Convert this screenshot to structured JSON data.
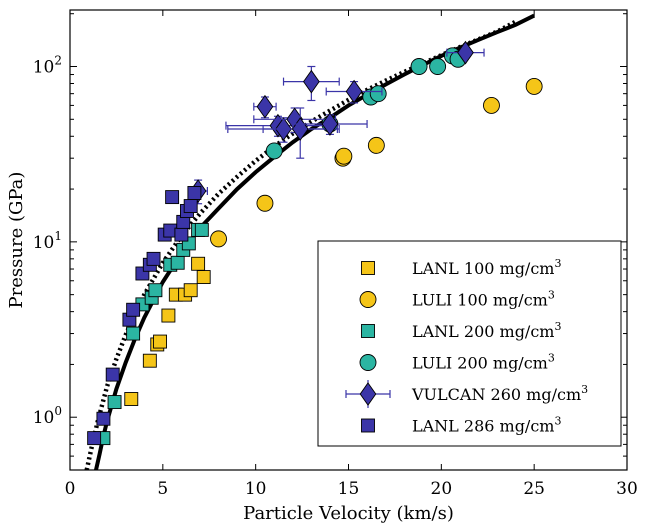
{
  "chart_data": {
    "type": "scatter",
    "xlabel": "Particle Velocity (km/s)",
    "ylabel": "Pressure (GPa)",
    "xlim": [
      0,
      30
    ],
    "ylim": [
      0.5,
      210
    ],
    "yscale": "log",
    "x_ticks": [
      0,
      5,
      10,
      15,
      20,
      25,
      30
    ],
    "y_ticks": [
      {
        "value": 1,
        "base": "10",
        "exp": "0"
      },
      {
        "value": 10,
        "base": "10",
        "exp": "1"
      },
      {
        "value": 100,
        "base": "10",
        "exp": "2"
      }
    ],
    "grid": false,
    "legend_position": "bottom-right",
    "fit_curves": [
      {
        "style": "solid",
        "color": "#000000",
        "points": [
          [
            1.4,
            0.5
          ],
          [
            1.6,
            0.62
          ],
          [
            1.8,
            0.78
          ],
          [
            2,
            0.95
          ],
          [
            2.5,
            1.45
          ],
          [
            3,
            2.05
          ],
          [
            3.5,
            2.8
          ],
          [
            4,
            3.7
          ],
          [
            5,
            5.9
          ],
          [
            6,
            8.6
          ],
          [
            7,
            12
          ],
          [
            8,
            15.5
          ],
          [
            9,
            20
          ],
          [
            10,
            25
          ],
          [
            11,
            30.5
          ],
          [
            12,
            37
          ],
          [
            13,
            44
          ],
          [
            14,
            51
          ],
          [
            15,
            60
          ],
          [
            16,
            69
          ],
          [
            17,
            79
          ],
          [
            18,
            90
          ],
          [
            19,
            102
          ],
          [
            20,
            115
          ],
          [
            21,
            128
          ],
          [
            22,
            142
          ],
          [
            23,
            157
          ],
          [
            24,
            173
          ],
          [
            25,
            195
          ]
        ]
      },
      {
        "style": "dotted",
        "color": "#000000",
        "points": [
          [
            0.9,
            0.5
          ],
          [
            1.2,
            0.7
          ],
          [
            1.5,
            0.95
          ],
          [
            2,
            1.5
          ],
          [
            2.5,
            2.15
          ],
          [
            3,
            2.95
          ],
          [
            3.5,
            3.9
          ],
          [
            4,
            5
          ],
          [
            5,
            7.6
          ],
          [
            6,
            10.8
          ],
          [
            7,
            14.5
          ],
          [
            8,
            18.8
          ],
          [
            9,
            23.5
          ],
          [
            10,
            29
          ],
          [
            11,
            35
          ],
          [
            12,
            41.5
          ],
          [
            13,
            48.5
          ],
          [
            14,
            56
          ],
          [
            15,
            64.5
          ],
          [
            16,
            73.5
          ],
          [
            17,
            83
          ],
          [
            18,
            93
          ],
          [
            19,
            104
          ],
          [
            20,
            116
          ],
          [
            21,
            129
          ],
          [
            22,
            143
          ],
          [
            23,
            158
          ],
          [
            24,
            180
          ]
        ]
      }
    ],
    "series": [
      {
        "name": "LANL 100 mg/cm3",
        "label_base": "LANL 100 mg/cm",
        "label_sup": "3",
        "marker": "square",
        "color": "#f5c518",
        "points": [
          [
            3.3,
            1.27
          ],
          [
            4.3,
            2.1
          ],
          [
            4.7,
            2.6
          ],
          [
            4.85,
            2.7
          ],
          [
            5.3,
            3.8
          ],
          [
            5.7,
            5.0
          ],
          [
            6.2,
            5.0
          ],
          [
            6.5,
            5.3
          ],
          [
            6.9,
            7.5
          ],
          [
            7.2,
            6.3
          ]
        ]
      },
      {
        "name": "LULI 100 mg/cm3",
        "label_base": "LULI 100 mg/cm",
        "label_sup": "3",
        "marker": "circle",
        "color": "#f5c518",
        "points": [
          [
            8.0,
            10.4
          ],
          [
            10.5,
            16.6
          ],
          [
            14.7,
            30.0
          ],
          [
            14.75,
            30.8
          ],
          [
            16.5,
            35.5
          ],
          [
            22.7,
            60.0
          ],
          [
            25.0,
            77.0
          ]
        ]
      },
      {
        "name": "LANL 200 mg/cm3",
        "label_base": "LANL 200 mg/cm",
        "label_sup": "3",
        "marker": "square",
        "color": "#2bb5a2",
        "points": [
          [
            1.8,
            0.76
          ],
          [
            2.4,
            1.22
          ],
          [
            3.4,
            3.0
          ],
          [
            3.9,
            4.4
          ],
          [
            4.4,
            4.8
          ],
          [
            4.6,
            5.3
          ],
          [
            5.4,
            7.4
          ],
          [
            5.8,
            7.6
          ],
          [
            6.1,
            9.0
          ],
          [
            6.4,
            9.8
          ],
          [
            6.9,
            11.7
          ],
          [
            7.1,
            11.7
          ]
        ]
      },
      {
        "name": "LULI 200 mg/cm3",
        "label_base": "LULI 200 mg/cm",
        "label_sup": "3",
        "marker": "circle",
        "color": "#2bb5a2",
        "points": [
          [
            11.0,
            33.0
          ],
          [
            14.0,
            47.0
          ],
          [
            16.2,
            67.0
          ],
          [
            16.6,
            70.0
          ],
          [
            18.8,
            100.0
          ],
          [
            19.8,
            100.0
          ],
          [
            20.6,
            115.0
          ],
          [
            20.9,
            110.0
          ]
        ]
      },
      {
        "name": "VULCAN 260 mg/cm3",
        "label_base": "VULCAN 260 mg/cm",
        "label_sup": "3",
        "marker": "diamond",
        "color": "#3b35a8",
        "errorbars": true,
        "points": [
          [
            6.9,
            19.5,
            0.5,
            3
          ],
          [
            10.5,
            59.0,
            0.6,
            8
          ],
          [
            11.2,
            46.0,
            2.8,
            6
          ],
          [
            11.5,
            44.0,
            3.0,
            7
          ],
          [
            12.1,
            50.0,
            2.2,
            8
          ],
          [
            12.4,
            44.0,
            2.0,
            14
          ],
          [
            13.0,
            82.0,
            1.5,
            18
          ],
          [
            14.0,
            47.0,
            2.0,
            6
          ],
          [
            15.3,
            72.0,
            1.5,
            10
          ],
          [
            21.3,
            120.0,
            1.0,
            8
          ]
        ]
      },
      {
        "name": "LANL 286 mg/cm3",
        "label_base": "LANL 286 mg/cm",
        "label_sup": "3",
        "marker": "square",
        "color": "#3b35a8",
        "points": [
          [
            1.3,
            0.76
          ],
          [
            1.8,
            0.98
          ],
          [
            2.3,
            1.75
          ],
          [
            3.2,
            3.6
          ],
          [
            3.4,
            4.1
          ],
          [
            3.9,
            6.6
          ],
          [
            4.3,
            7.4
          ],
          [
            4.5,
            8.0
          ],
          [
            5.1,
            11.0
          ],
          [
            5.4,
            11.6
          ],
          [
            5.5,
            18.0
          ],
          [
            6.0,
            11.0
          ],
          [
            6.1,
            13.0
          ],
          [
            6.3,
            15.0
          ],
          [
            6.5,
            16.0
          ],
          [
            6.7,
            19.0
          ]
        ]
      }
    ]
  }
}
